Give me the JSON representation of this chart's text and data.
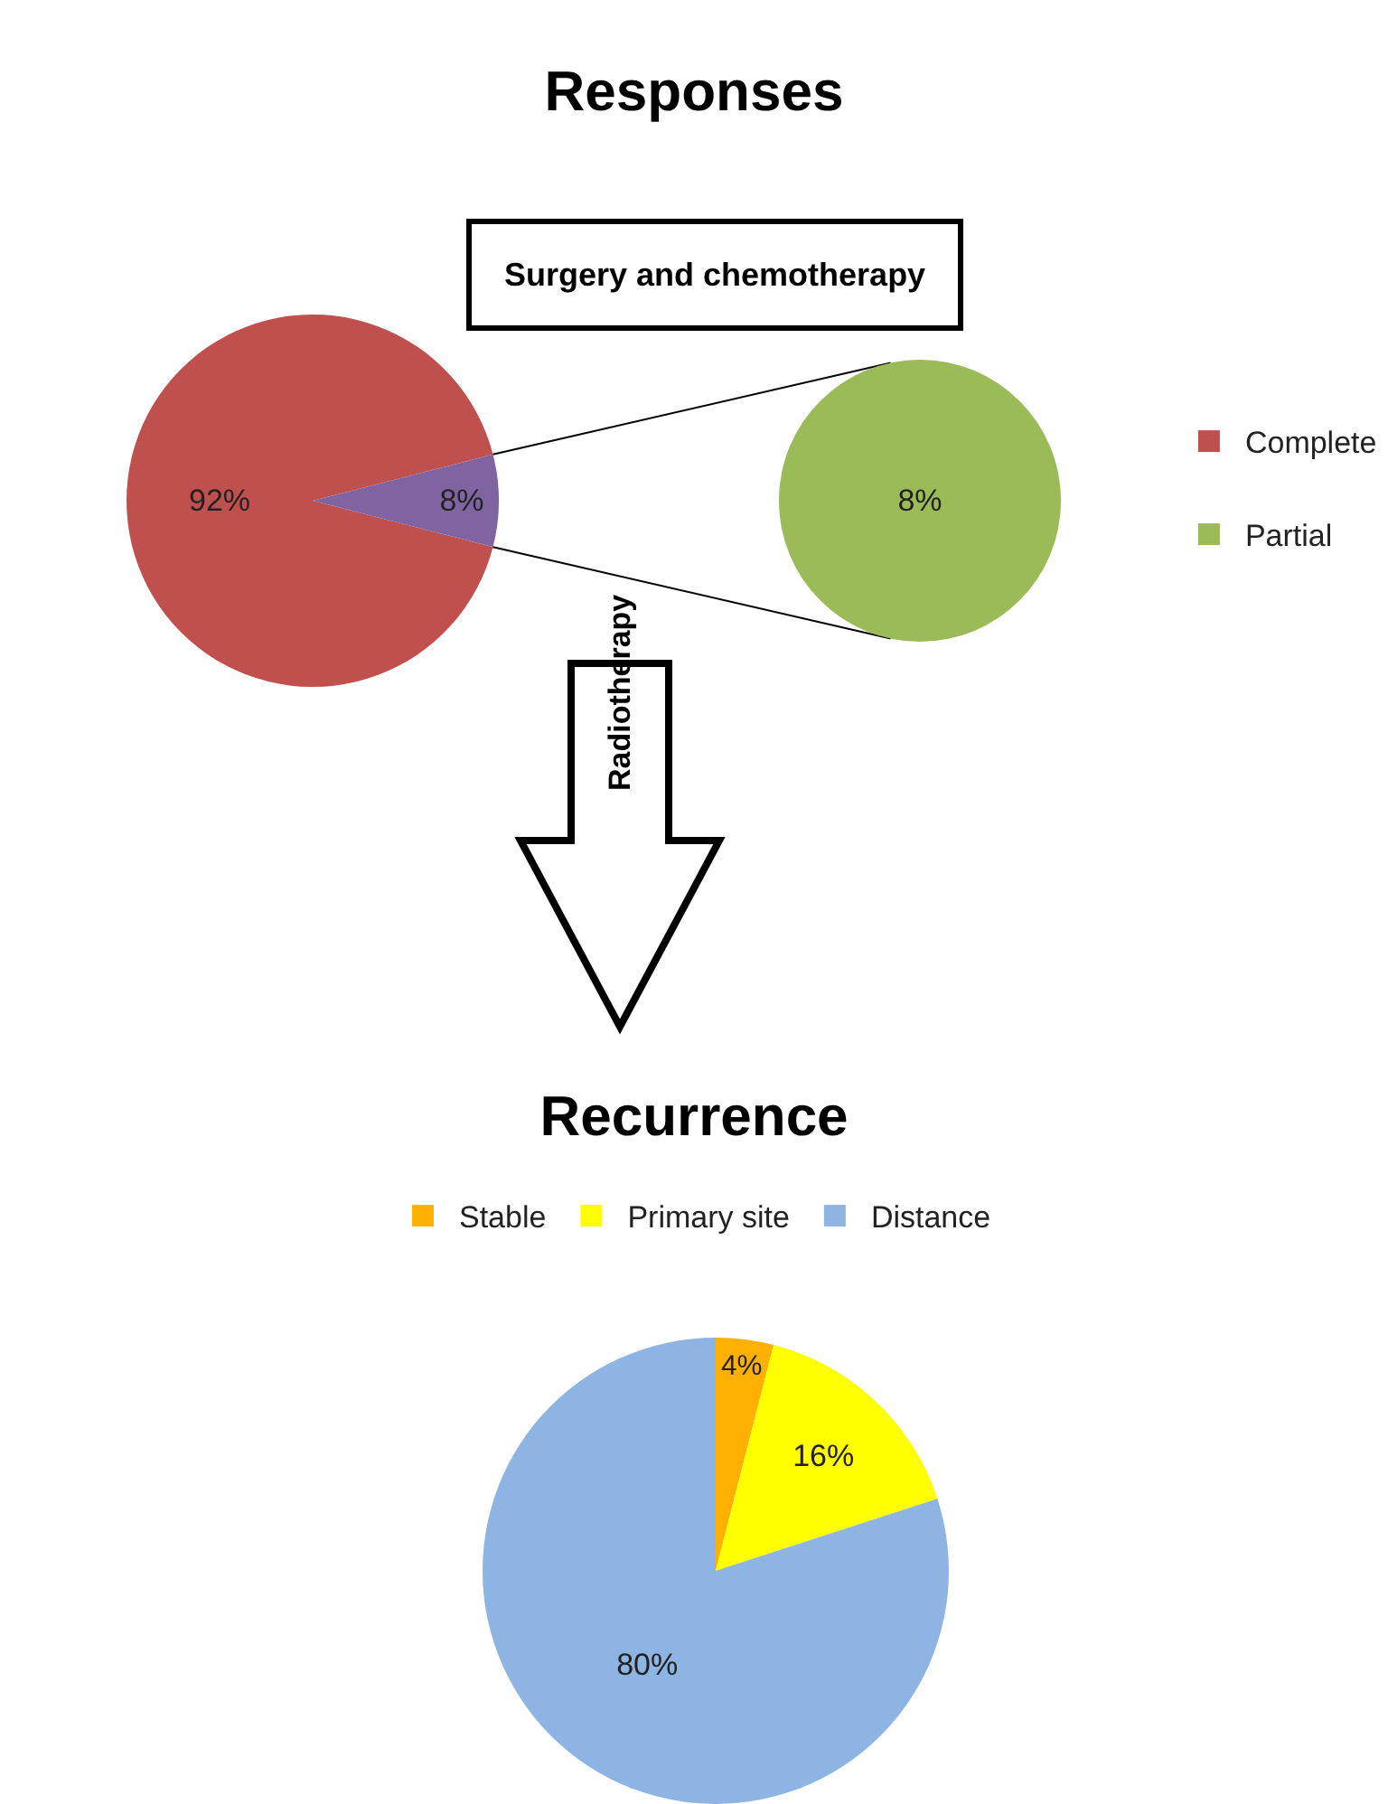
{
  "chart_data": [
    {
      "type": "pie",
      "title": "Responses",
      "subtitle": "Surgery and chemotherapy",
      "legend": "right",
      "annotations": [
        "Radiotherapy"
      ],
      "categories": [
        "Complete",
        null
      ],
      "values": [
        92,
        8
      ],
      "colors": [
        "#c0504d",
        "#8064a2"
      ],
      "value_labels": [
        "92%",
        "8%"
      ]
    },
    {
      "type": "pie",
      "legend": "right",
      "categories": [
        "Partial"
      ],
      "values": [
        8
      ],
      "colors": [
        "#9bbb59"
      ],
      "value_labels": [
        "8%"
      ]
    },
    {
      "type": "pie",
      "title": "Recurrence",
      "legend": "top",
      "categories": [
        "Stable",
        "Primary site",
        "Distance"
      ],
      "values": [
        4,
        16,
        80
      ],
      "colors": [
        "#ffb000",
        "#ffff00",
        "#8eb4e3"
      ],
      "value_labels": [
        "4%",
        "16%",
        "80%"
      ]
    }
  ]
}
